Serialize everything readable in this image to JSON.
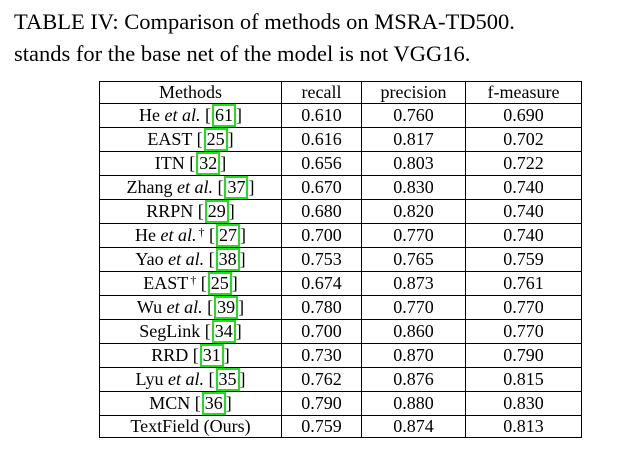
{
  "caption": {
    "line1": "TABLE IV: Comparison of methods on MSRA-TD500.",
    "line2": "stands for the base net of the model is not VGG16."
  },
  "table": {
    "headers": [
      "Methods",
      "recall",
      "precision",
      "f-measure"
    ],
    "rows": [
      {
        "name": "He",
        "etal": true,
        "dagger": false,
        "cite": "61",
        "recall": "0.610",
        "precision": "0.760",
        "fmeasure": "0.690",
        "bold": false
      },
      {
        "name": "EAST",
        "etal": false,
        "dagger": false,
        "cite": "25",
        "recall": "0.616",
        "precision": "0.817",
        "fmeasure": "0.702",
        "bold": false
      },
      {
        "name": "ITN",
        "etal": false,
        "dagger": false,
        "cite": "32",
        "recall": "0.656",
        "precision": "0.803",
        "fmeasure": "0.722",
        "bold": false
      },
      {
        "name": "Zhang",
        "etal": true,
        "dagger": false,
        "cite": "37",
        "recall": "0.670",
        "precision": "0.830",
        "fmeasure": "0.740",
        "bold": false
      },
      {
        "name": "RRPN",
        "etal": false,
        "dagger": false,
        "cite": "29",
        "recall": "0.680",
        "precision": "0.820",
        "fmeasure": "0.740",
        "bold": false
      },
      {
        "name": "He",
        "etal": true,
        "dagger": true,
        "cite": "27",
        "recall": "0.700",
        "precision": "0.770",
        "fmeasure": "0.740",
        "bold": false
      },
      {
        "name": "Yao",
        "etal": true,
        "dagger": false,
        "cite": "38",
        "recall": "0.753",
        "precision": "0.765",
        "fmeasure": "0.759",
        "bold": false
      },
      {
        "name": "EAST",
        "etal": false,
        "dagger": true,
        "cite": "25",
        "recall": "0.674",
        "precision": "0.873",
        "fmeasure": "0.761",
        "bold": false
      },
      {
        "name": "Wu",
        "etal": true,
        "dagger": false,
        "cite": "39",
        "recall": "0.780",
        "precision": "0.770",
        "fmeasure": "0.770",
        "bold": false
      },
      {
        "name": "SegLink",
        "etal": false,
        "dagger": false,
        "cite": "34",
        "recall": "0.700",
        "precision": "0.860",
        "fmeasure": "0.770",
        "bold": false
      },
      {
        "name": "RRD",
        "etal": false,
        "dagger": false,
        "cite": "31",
        "recall": "0.730",
        "precision": "0.870",
        "fmeasure": "0.790",
        "bold": false
      },
      {
        "name": "Lyu",
        "etal": true,
        "dagger": false,
        "cite": "35",
        "recall": "0.762",
        "precision": "0.876",
        "fmeasure": "0.815",
        "bold": false
      },
      {
        "name": "MCN",
        "etal": false,
        "dagger": false,
        "cite": "36",
        "recall": "0.790",
        "precision": "0.880",
        "fmeasure": "0.830",
        "bold": true
      },
      {
        "name": "TextField (Ours)",
        "etal": false,
        "dagger": false,
        "cite": "",
        "recall": "0.759",
        "precision": "0.874",
        "fmeasure": "0.813",
        "bold": false
      }
    ]
  },
  "etal_text": "et al.",
  "dagger_symbol": "†",
  "cite_box_color": "#22dd22"
}
